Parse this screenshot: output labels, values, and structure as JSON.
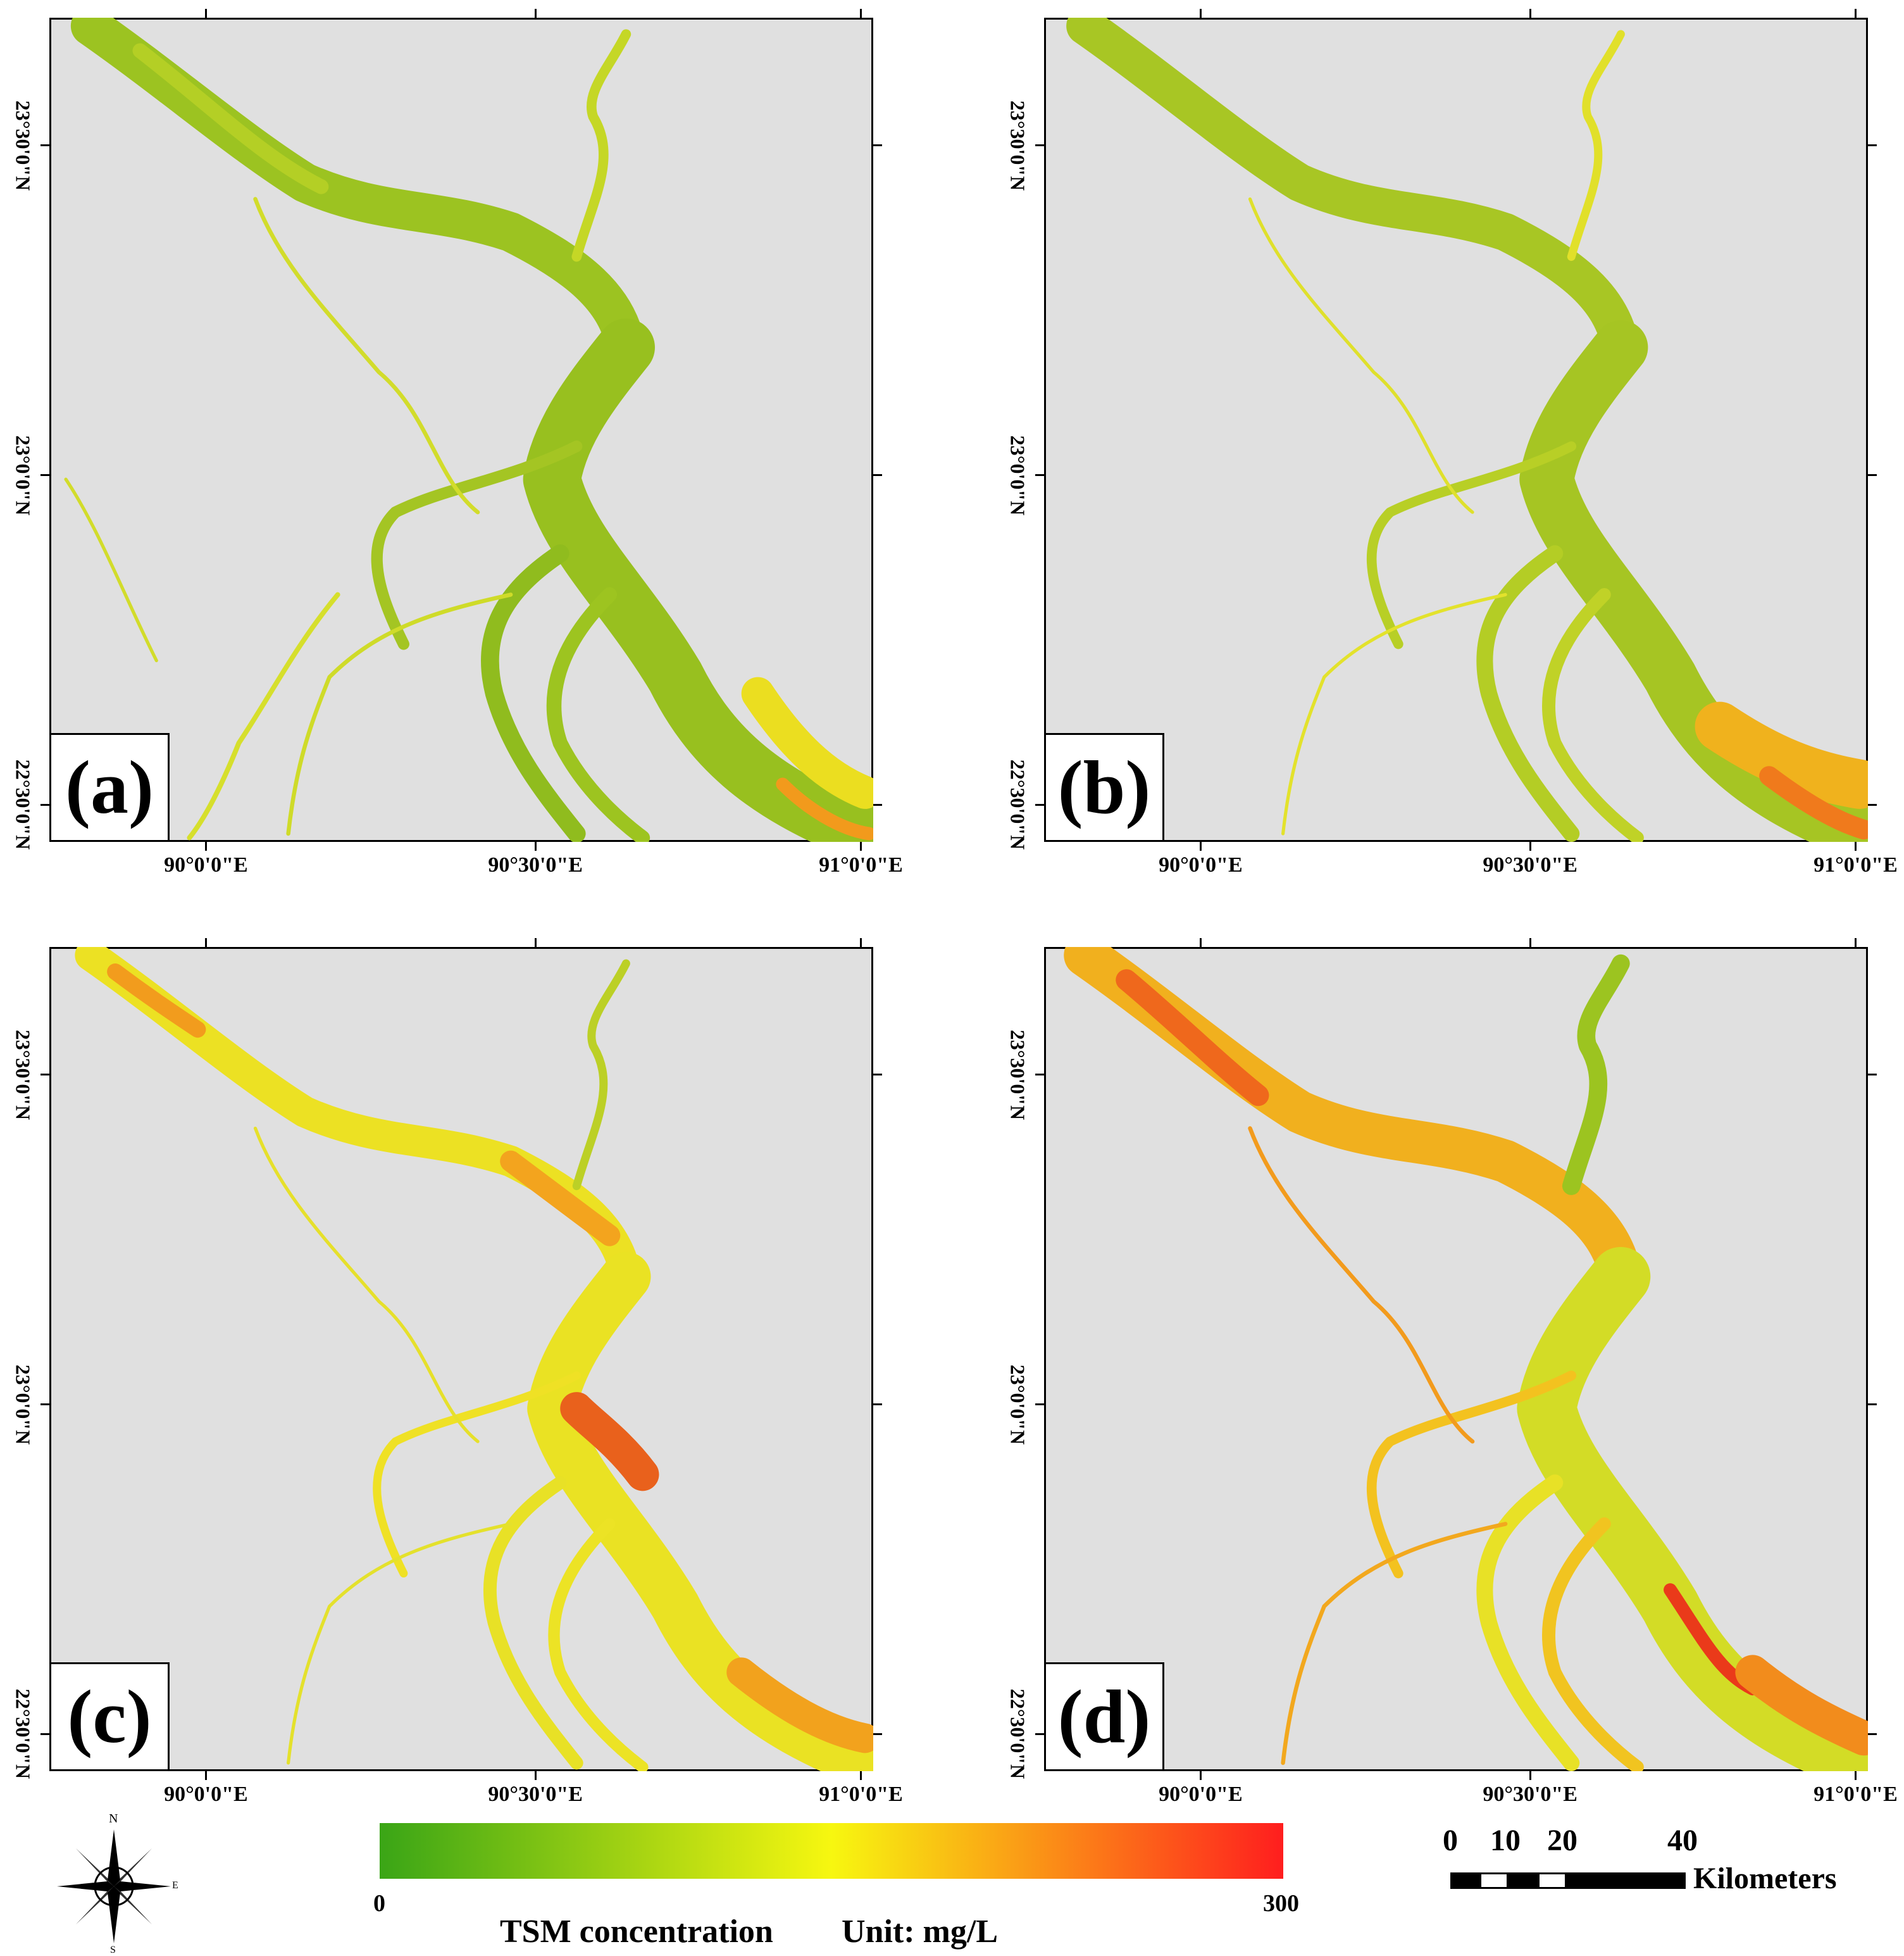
{
  "panels": [
    {
      "id": "a",
      "label": "(a)",
      "style": "green"
    },
    {
      "id": "b",
      "label": "(b)",
      "style": "greenish"
    },
    {
      "id": "c",
      "label": "(c)",
      "style": "yellow"
    },
    {
      "id": "d",
      "label": "(d)",
      "style": "orange"
    }
  ],
  "axes": {
    "x_labels": [
      "90°0'0\"E",
      "90°30'0\"E",
      "91°0'0\"E"
    ],
    "y_labels": [
      "23°30'0\"N",
      "23°0'0\"N",
      "22°30'0\"N"
    ]
  },
  "legend": {
    "title": "TSM concentration",
    "unit": "Unit: mg/L",
    "min": "0",
    "max": "300",
    "colors": {
      "low": "#3aa516",
      "mid": "#f7f710",
      "high": "#ff1e1e"
    }
  },
  "scale": {
    "ticks": [
      "0",
      "10",
      "20",
      "40"
    ],
    "unit": "Kilometers"
  },
  "north_arrow": {
    "icon": "compass-rose-icon",
    "north": "N",
    "south": "S",
    "east": "E"
  },
  "colors": {
    "background": "#e0e0e0",
    "water_green": "#9bc41e",
    "water_yellow": "#e8e620",
    "water_orange": "#f2a81d",
    "water_red": "#ea3a1a"
  }
}
